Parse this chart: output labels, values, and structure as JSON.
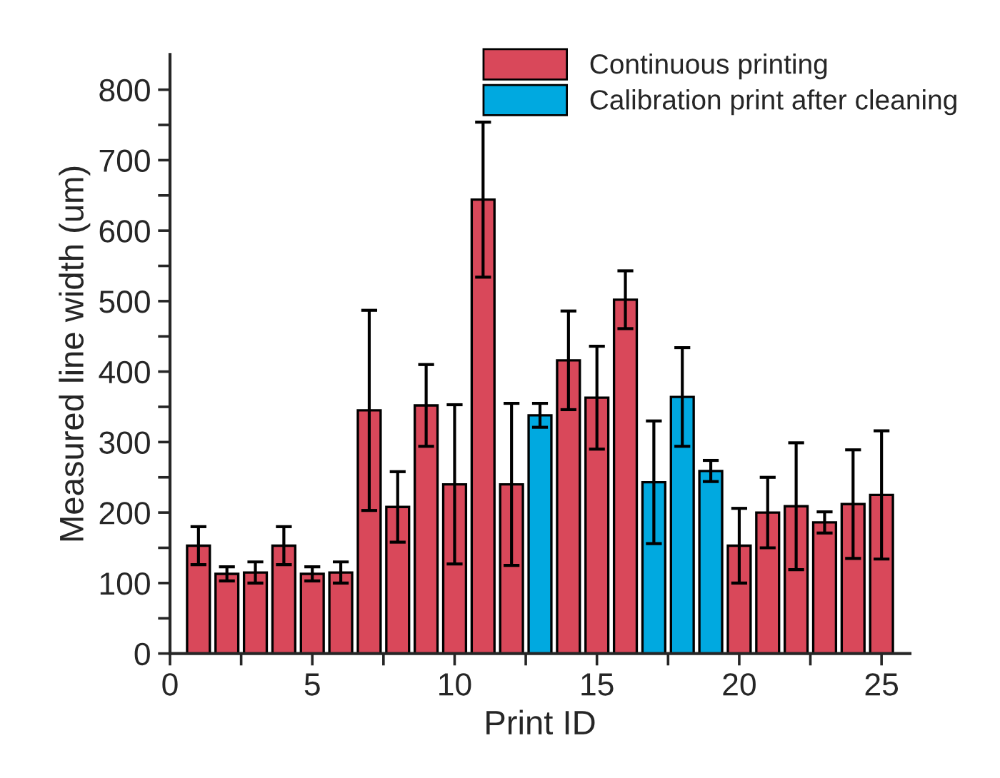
{
  "chart_data": {
    "type": "bar",
    "xlabel": "Print ID",
    "ylabel": "Measured line width (um)",
    "series": [
      {
        "name": "Continuous printing",
        "color": "#d9485a",
        "x": [
          1,
          2,
          3,
          4,
          5,
          6,
          7,
          8,
          9,
          10,
          11,
          12,
          14,
          15,
          16,
          20,
          21,
          22,
          23,
          24,
          25
        ],
        "values": [
          153,
          113,
          115,
          153,
          113,
          115,
          345,
          208,
          352,
          240,
          644,
          240,
          416,
          363,
          502,
          153,
          200,
          209,
          186,
          212,
          225
        ],
        "errors": [
          27,
          10,
          15,
          27,
          10,
          15,
          142,
          50,
          58,
          113,
          110,
          115,
          70,
          73,
          41,
          53,
          50,
          90,
          15,
          77,
          91
        ]
      },
      {
        "name": "Calibration print after cleaning",
        "color": "#00a9e0",
        "x": [
          13,
          17,
          18,
          19
        ],
        "values": [
          338,
          243,
          364,
          259
        ],
        "errors": [
          17,
          87,
          70,
          15
        ]
      }
    ],
    "xlim": [
      0,
      26
    ],
    "xticks": [
      0,
      {
        "value": 2.5,
        "label": null
      },
      5,
      {
        "value": 7.5,
        "label": null
      },
      10,
      {
        "value": 12.5,
        "label": null
      },
      15,
      {
        "value": 17.5,
        "label": null
      },
      20,
      {
        "value": 22.5,
        "label": null
      },
      25
    ],
    "ylim": [
      0,
      850
    ],
    "yticks": [
      0,
      {
        "value": 50,
        "label": null
      },
      100,
      {
        "value": 150,
        "label": null
      },
      200,
      {
        "value": 250,
        "label": null
      },
      300,
      {
        "value": 350,
        "label": null
      },
      400,
      {
        "value": 450,
        "label": null
      },
      500,
      {
        "value": 550,
        "label": null
      },
      600,
      {
        "value": 650,
        "label": null
      },
      700,
      {
        "value": 750,
        "label": null
      },
      800
    ],
    "grid": false,
    "legend": "top right"
  }
}
